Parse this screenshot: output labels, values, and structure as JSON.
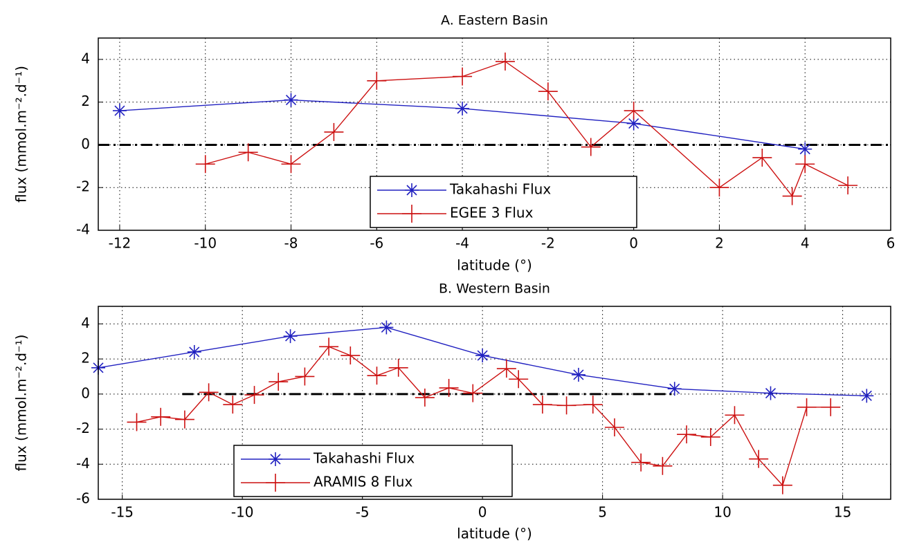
{
  "chart_data": [
    {
      "type": "line",
      "title": "A. Eastern Basin",
      "xlabel": "latitude (°)",
      "ylabel": "flux (mmol.m⁻².d⁻¹)",
      "xlim": [
        -12.5,
        6
      ],
      "ylim": [
        -4,
        5
      ],
      "xticks": [
        -12,
        -10,
        -8,
        -6,
        -4,
        -2,
        0,
        2,
        4,
        6
      ],
      "yticks": [
        -4,
        -2,
        0,
        2,
        4
      ],
      "grid": true,
      "legend": "lower center",
      "hline": 0,
      "series": [
        {
          "name": "Takahashi Flux",
          "color": "#2020c0",
          "marker": "asterisk",
          "x": [
            -12,
            -8,
            -4,
            0,
            4
          ],
          "values": [
            1.6,
            2.1,
            1.7,
            1.0,
            -0.2
          ]
        },
        {
          "name": "EGEE 3 Flux",
          "color": "#cc1010",
          "marker": "plus",
          "x": [
            -10,
            -9,
            -8,
            -7,
            -6,
            -4,
            -3,
            -2,
            -1,
            0,
            2,
            3,
            3.7,
            4,
            5
          ],
          "values": [
            -0.9,
            -0.35,
            -0.9,
            0.6,
            3.0,
            3.2,
            3.9,
            2.5,
            -0.1,
            1.6,
            -2.0,
            -0.6,
            -2.4,
            -0.9,
            -1.9
          ]
        }
      ]
    },
    {
      "type": "line",
      "title": "B. Western Basin",
      "xlabel": "latitude (°)",
      "ylabel": "flux (mmol.m⁻².d⁻¹)",
      "xlim": [
        -16,
        17
      ],
      "ylim": [
        -6,
        5
      ],
      "xticks": [
        -15,
        -10,
        -5,
        0,
        5,
        10,
        15
      ],
      "yticks": [
        -6,
        -4,
        -2,
        0,
        2,
        4
      ],
      "grid": true,
      "legend": "lower left",
      "hline": 0,
      "hline_x": [
        -12.5,
        8
      ],
      "series": [
        {
          "name": "Takahashi Flux",
          "color": "#2020c0",
          "marker": "asterisk",
          "x": [
            -16,
            -12,
            -8,
            -4,
            0,
            4,
            8,
            12,
            16
          ],
          "values": [
            1.5,
            2.4,
            3.3,
            3.8,
            2.2,
            1.1,
            0.3,
            0.05,
            -0.1
          ]
        },
        {
          "name": "ARAMIS 8 Flux",
          "color": "#cc1010",
          "marker": "plus",
          "x": [
            -14.4,
            -13.4,
            -12.4,
            -11.4,
            -10.4,
            -9.5,
            -8.5,
            -7.4,
            -6.4,
            -5.5,
            -4.4,
            -3.5,
            -2.4,
            -1.4,
            -0.4,
            1.0,
            1.5,
            2.5,
            3.5,
            4.6,
            5.5,
            6.6,
            7.5,
            8.5,
            9.5,
            10.5,
            11.5,
            12.5,
            13.5,
            14.5
          ],
          "values": [
            -1.6,
            -1.3,
            -1.45,
            0.1,
            -0.6,
            -0.05,
            0.7,
            1.0,
            2.7,
            2.2,
            1.05,
            1.5,
            -0.2,
            0.35,
            0.05,
            1.45,
            0.85,
            -0.6,
            -0.65,
            -0.6,
            -1.9,
            -3.9,
            -4.1,
            -2.3,
            -2.45,
            -1.2,
            -3.7,
            -5.2,
            -0.75,
            -0.75
          ]
        }
      ]
    }
  ]
}
